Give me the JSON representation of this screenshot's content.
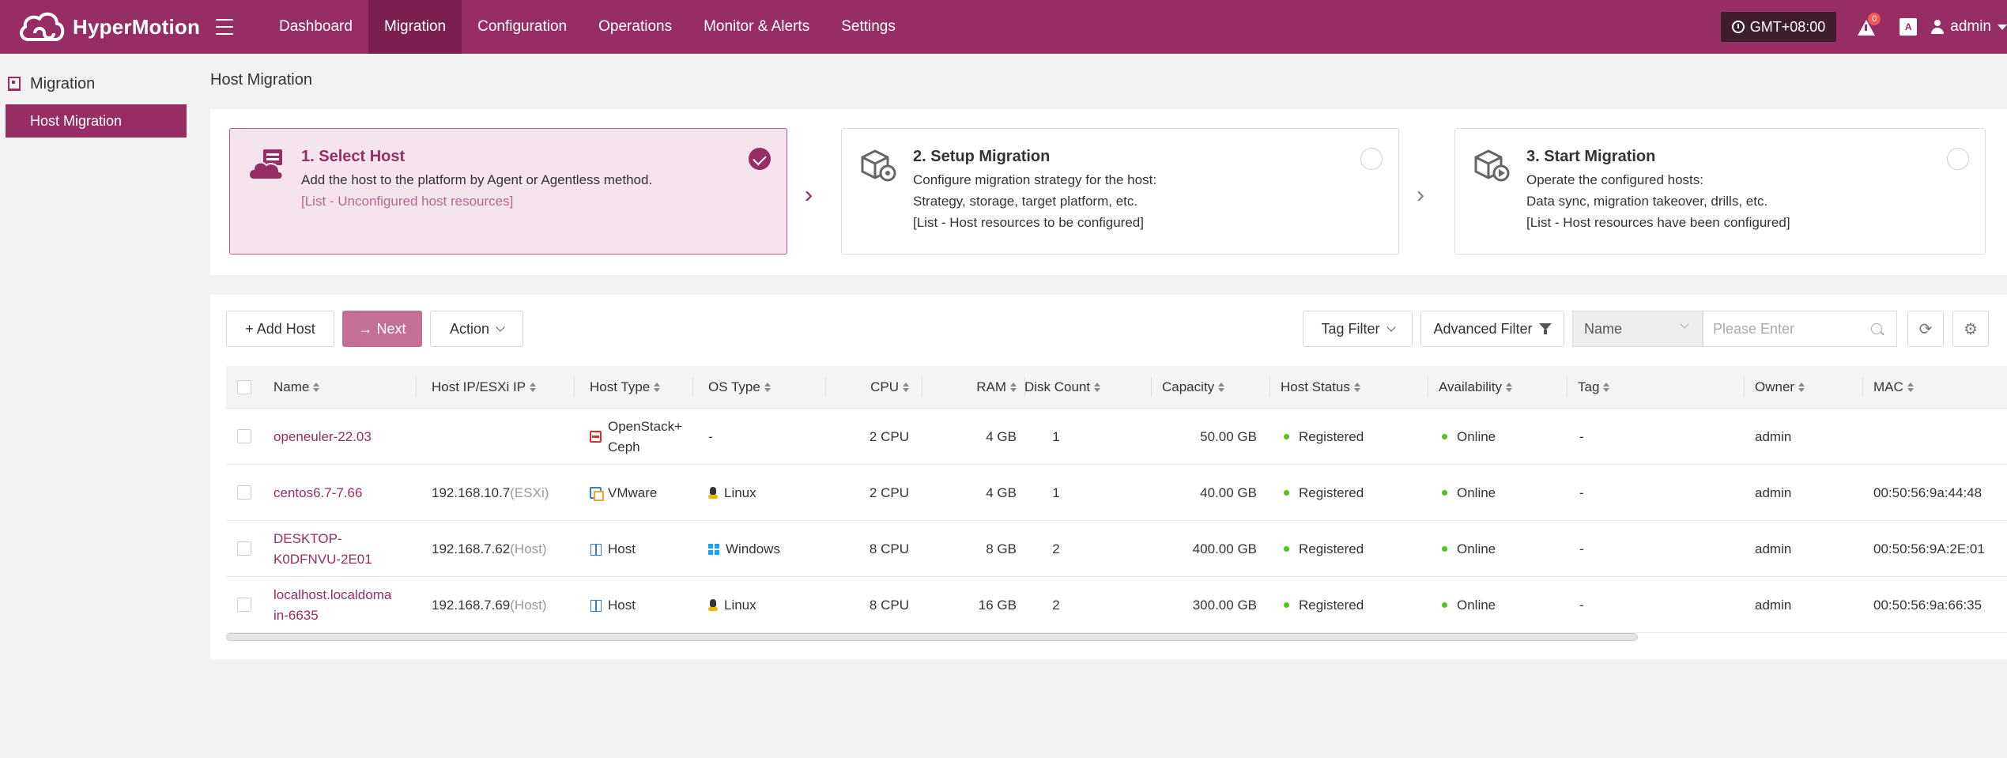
{
  "app": {
    "name": "HyperMotion",
    "nav": [
      "Dashboard",
      "Migration",
      "Configuration",
      "Operations",
      "Monitor & Alerts",
      "Settings"
    ],
    "active_nav": "Migration",
    "timezone": "GMT+08:00",
    "alert_count": "0",
    "lang_icon": "A",
    "user": "admin"
  },
  "sidebar": {
    "section": "Migration",
    "items": [
      {
        "label": "Host Migration",
        "active": true
      }
    ]
  },
  "page_title": "Host Migration",
  "steps": [
    {
      "title": "1. Select Host",
      "lines": [
        "Add the host to the platform by Agent or Agentless method.",
        "[List - Unconfigured host resources]",
        ""
      ],
      "active": true,
      "checked": true
    },
    {
      "title": "2. Setup Migration",
      "lines": [
        "Configure migration strategy for the host:",
        "Strategy, storage, target platform, etc.",
        "[List - Host resources to be configured]"
      ],
      "active": false,
      "checked": false
    },
    {
      "title": "3. Start Migration",
      "lines": [
        "Operate the configured hosts:",
        "Data sync, migration takeover, drills, etc.",
        "[List - Host resources have been configured]"
      ],
      "active": false,
      "checked": false
    }
  ],
  "toolbar": {
    "add_host": "+ Add Host",
    "next": "→ Next",
    "action": "Action",
    "tag_filter": "Tag Filter",
    "advanced_filter": "Advanced Filter",
    "search_field": "Name",
    "search_placeholder": "Please Enter"
  },
  "table": {
    "columns": [
      "Name",
      "Host IP/ESXi IP",
      "Host Type",
      "OS Type",
      "CPU",
      "RAM",
      "Disk Count",
      "Capacity",
      "Host Status",
      "Availability",
      "Tag",
      "Owner",
      "MAC"
    ],
    "rows": [
      {
        "name": "openeuler-22.03",
        "ip": "",
        "ip_note": "",
        "host_type": "OpenStack+\nCeph",
        "host_type_icon": "openstack-icon",
        "os": "-",
        "os_icon": "",
        "cpu": "2 CPU",
        "ram": "4 GB",
        "disks": "1",
        "capacity": "50.00 GB",
        "status": "Registered",
        "availability": "Online",
        "tag": "-",
        "owner": "admin",
        "mac": ""
      },
      {
        "name": "centos6.7-7.66",
        "ip": "192.168.10.7",
        "ip_note": "(ESXi)",
        "host_type": "VMware",
        "host_type_icon": "vmware-icon",
        "os": "Linux",
        "os_icon": "linux-icon",
        "cpu": "2 CPU",
        "ram": "4 GB",
        "disks": "1",
        "capacity": "40.00 GB",
        "status": "Registered",
        "availability": "Online",
        "tag": "-",
        "owner": "admin",
        "mac": "00:50:56:9a:44:48"
      },
      {
        "name": "DESKTOP-\nK0DFNVU-2E01",
        "ip": "192.168.7.62",
        "ip_note": "(Host)",
        "host_type": "Host",
        "host_type_icon": "host-icon",
        "os": "Windows",
        "os_icon": "windows-icon",
        "cpu": "8 CPU",
        "ram": "8 GB",
        "disks": "2",
        "capacity": "400.00 GB",
        "status": "Registered",
        "availability": "Online",
        "tag": "-",
        "owner": "admin",
        "mac": "00:50:56:9A:2E:01"
      },
      {
        "name": "localhost.localdoma\nin-6635",
        "ip": "192.168.7.69",
        "ip_note": "(Host)",
        "host_type": "Host",
        "host_type_icon": "host-icon",
        "os": "Linux",
        "os_icon": "linux-icon",
        "cpu": "8 CPU",
        "ram": "16 GB",
        "disks": "2",
        "capacity": "300.00 GB",
        "status": "Registered",
        "availability": "Online",
        "tag": "-",
        "owner": "admin",
        "mac": "00:50:56:9a:66:35"
      }
    ]
  },
  "colors": {
    "brand": "#962d63",
    "brand_dark": "#7b1f4f",
    "online": "#52c41a"
  }
}
